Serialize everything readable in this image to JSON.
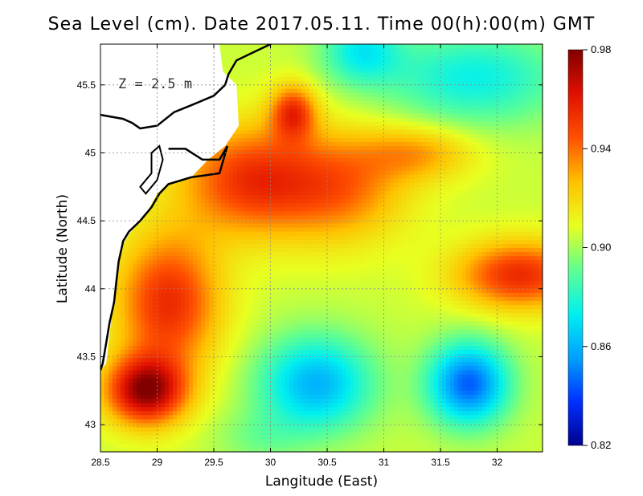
{
  "chart_data": {
    "type": "heatmap",
    "title": "Sea Level (cm). Date 2017.05.11. Time 00(h):00(m) GMT",
    "xlabel": "Langitude (East)",
    "ylabel": "Latitude (North)",
    "annotation": "Z = 2.5 m",
    "xlim": [
      28.5,
      32.4
    ],
    "ylim": [
      42.8,
      45.8
    ],
    "xticks": [
      {
        "value": 28.5,
        "label": "28.5"
      },
      {
        "value": 29,
        "label": "29"
      },
      {
        "value": 29.5,
        "label": "29.5"
      },
      {
        "value": 30,
        "label": "30"
      },
      {
        "value": 30.5,
        "label": "30.5"
      },
      {
        "value": 31,
        "label": "31"
      },
      {
        "value": 31.5,
        "label": "31.5"
      },
      {
        "value": 32,
        "label": "32"
      }
    ],
    "yticks": [
      {
        "value": 43,
        "label": "43"
      },
      {
        "value": 43.5,
        "label": "43.5"
      },
      {
        "value": 44,
        "label": "44"
      },
      {
        "value": 44.5,
        "label": "44.5"
      },
      {
        "value": 45,
        "label": "45"
      },
      {
        "value": 45.5,
        "label": "45.5"
      }
    ],
    "grid": true,
    "colorbar": {
      "min": 0.82,
      "max": 0.98,
      "ticks": [
        {
          "value": 0.98,
          "label": "0.98"
        },
        {
          "value": 0.94,
          "label": "0.94"
        },
        {
          "value": 0.9,
          "label": "0.90"
        },
        {
          "value": 0.86,
          "label": "0.86"
        },
        {
          "value": 0.82,
          "label": "0.82"
        }
      ],
      "colors": [
        "#00008f",
        "#0030ff",
        "#00a0ff",
        "#00f0f0",
        "#60ff90",
        "#e8ff20",
        "#ffc000",
        "#ff5000",
        "#e01000",
        "#800000"
      ]
    },
    "base_value": 0.905,
    "features": [
      {
        "lon": 28.9,
        "lat": 43.25,
        "amp": 0.07,
        "sx": 0.35,
        "sy": 0.25
      },
      {
        "lon": 29.1,
        "lat": 43.9,
        "amp": 0.05,
        "sx": 0.45,
        "sy": 0.5
      },
      {
        "lon": 29.8,
        "lat": 44.8,
        "amp": 0.045,
        "sx": 0.6,
        "sy": 0.4
      },
      {
        "lon": 30.2,
        "lat": 45.3,
        "amp": 0.045,
        "sx": 0.2,
        "sy": 0.2
      },
      {
        "lon": 30.6,
        "lat": 44.75,
        "amp": 0.035,
        "sx": 0.6,
        "sy": 0.4
      },
      {
        "lon": 31.3,
        "lat": 45.0,
        "amp": 0.025,
        "sx": 0.5,
        "sy": 0.2
      },
      {
        "lon": 32.2,
        "lat": 44.1,
        "amp": 0.05,
        "sx": 0.55,
        "sy": 0.25
      },
      {
        "lon": 30.4,
        "lat": 43.3,
        "amp": -0.045,
        "sx": 0.5,
        "sy": 0.35
      },
      {
        "lon": 31.75,
        "lat": 43.3,
        "amp": -0.06,
        "sx": 0.35,
        "sy": 0.3
      },
      {
        "lon": 31.8,
        "lat": 45.55,
        "amp": -0.03,
        "sx": 0.8,
        "sy": 0.35
      },
      {
        "lon": 30.8,
        "lat": 45.75,
        "amp": -0.03,
        "sx": 0.35,
        "sy": 0.25
      },
      {
        "lon": 29.9,
        "lat": 42.9,
        "amp": -0.01,
        "sx": 0.4,
        "sy": 0.2
      }
    ],
    "land_mask": [
      [
        28.5,
        45.8
      ],
      [
        29.55,
        45.8
      ],
      [
        29.58,
        45.6
      ],
      [
        29.7,
        45.5
      ],
      [
        29.72,
        45.2
      ],
      [
        29.6,
        45.05
      ],
      [
        29.45,
        44.95
      ],
      [
        29.3,
        44.82
      ],
      [
        29.1,
        44.78
      ],
      [
        29.0,
        44.7
      ],
      [
        28.9,
        44.55
      ],
      [
        28.75,
        44.4
      ],
      [
        28.68,
        44.3
      ],
      [
        28.65,
        44.15
      ],
      [
        28.63,
        43.95
      ],
      [
        28.6,
        43.8
      ],
      [
        28.57,
        43.6
      ],
      [
        28.55,
        43.45
      ],
      [
        28.5,
        43.4
      ]
    ],
    "coastline": [
      [
        28.5,
        45.28
      ],
      [
        28.7,
        45.25
      ],
      [
        28.78,
        45.22
      ],
      [
        28.85,
        45.18
      ],
      [
        29.0,
        45.2
      ],
      [
        29.15,
        45.3
      ],
      [
        29.3,
        45.35
      ],
      [
        29.5,
        45.42
      ],
      [
        29.6,
        45.5
      ],
      [
        29.63,
        45.58
      ],
      [
        29.7,
        45.68
      ],
      [
        29.8,
        45.72
      ],
      [
        29.95,
        45.78
      ],
      [
        30.05,
        45.82
      ]
    ],
    "coastline2": [
      [
        29.1,
        45.03
      ],
      [
        29.25,
        45.03
      ],
      [
        29.4,
        44.95
      ],
      [
        29.55,
        44.95
      ],
      [
        29.62,
        45.05
      ],
      [
        29.55,
        44.85
      ],
      [
        29.3,
        44.82
      ],
      [
        29.1,
        44.77
      ],
      [
        29.02,
        44.7
      ],
      [
        28.95,
        44.6
      ],
      [
        28.85,
        44.5
      ],
      [
        28.75,
        44.42
      ],
      [
        28.7,
        44.35
      ],
      [
        28.66,
        44.2
      ],
      [
        28.64,
        44.05
      ],
      [
        28.62,
        43.9
      ],
      [
        28.58,
        43.75
      ],
      [
        28.55,
        43.6
      ],
      [
        28.52,
        43.45
      ],
      [
        28.5,
        43.4
      ]
    ],
    "lagoon": [
      [
        28.85,
        44.75
      ],
      [
        28.95,
        44.85
      ],
      [
        28.95,
        45.0
      ],
      [
        29.02,
        45.05
      ],
      [
        29.05,
        44.95
      ],
      [
        29.0,
        44.8
      ],
      [
        28.9,
        44.7
      ]
    ]
  }
}
